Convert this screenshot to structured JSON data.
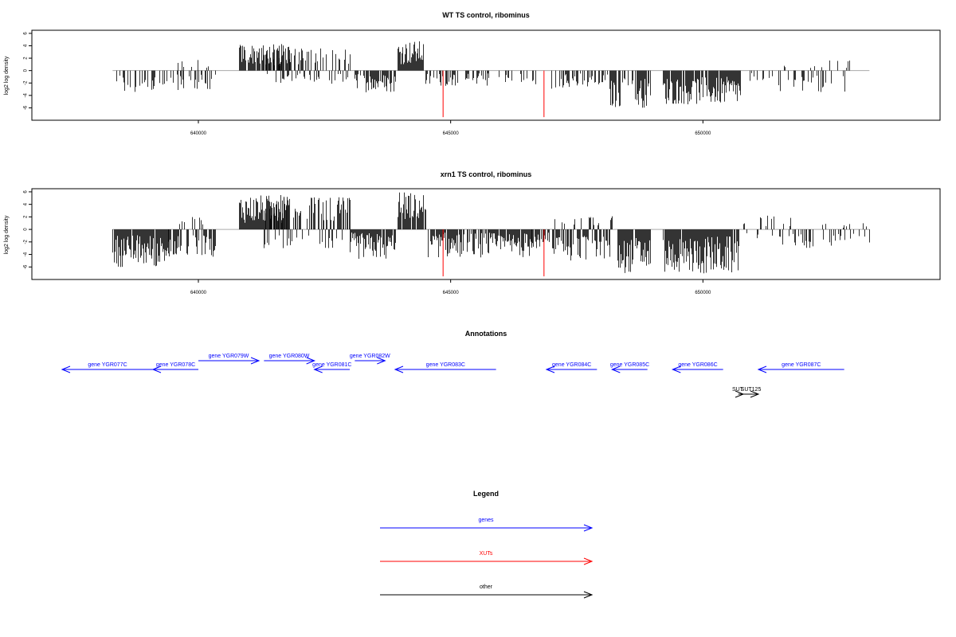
{
  "chart_data": [
    {
      "type": "bar",
      "title": "WT TS control, ribominus",
      "xlabel": "",
      "ylabel": "log2 log density",
      "xlim": [
        636700,
        654700
      ],
      "ylim": [
        -8,
        6.5
      ],
      "xticks": [
        640000,
        645000,
        650000
      ],
      "xtick_labels": [
        "640000",
        "645000",
        "650000"
      ],
      "yticks": [
        -6,
        -4,
        -2,
        0,
        2,
        4,
        6
      ],
      "ytick_labels": [
        "-6",
        "-4",
        "-2",
        "0",
        "2",
        "4",
        "6"
      ],
      "baseline": {
        "from": 638300,
        "to": 653300,
        "y": 0
      },
      "bar_groups": [
        {
          "from": 638350,
          "to": 639700,
          "min": -4.0,
          "max": -0.4,
          "density": 0.35
        },
        {
          "from": 639500,
          "to": 640350,
          "min": -3.0,
          "max": 2.0,
          "density": 0.5
        },
        {
          "from": 640800,
          "to": 641800,
          "min": 1.0,
          "max": 4.3,
          "density": 0.8
        },
        {
          "from": 641300,
          "to": 643000,
          "min": -2.2,
          "max": 3.6,
          "density": 0.65
        },
        {
          "from": 643100,
          "to": 643900,
          "min": -3.5,
          "max": -0.5,
          "density": 0.7
        },
        {
          "from": 643950,
          "to": 644450,
          "min": 1.0,
          "max": 4.8,
          "density": 0.9
        },
        {
          "from": 644500,
          "to": 645800,
          "min": -2.5,
          "max": -0.4,
          "density": 0.45
        },
        {
          "from": 645900,
          "to": 646700,
          "min": -2.2,
          "max": -0.4,
          "density": 0.4
        },
        {
          "from": 647000,
          "to": 648100,
          "min": -3.0,
          "max": -0.4,
          "density": 0.5
        },
        {
          "from": 648150,
          "to": 648350,
          "min": -6.0,
          "max": -1.5,
          "density": 0.9
        },
        {
          "from": 648400,
          "to": 648600,
          "min": -3.0,
          "max": -0.4,
          "density": 0.4
        },
        {
          "from": 648650,
          "to": 648950,
          "min": -6.0,
          "max": -1.2,
          "density": 0.9
        },
        {
          "from": 649200,
          "to": 650750,
          "min": -5.5,
          "max": -1.0,
          "density": 0.9
        },
        {
          "from": 650800,
          "to": 651400,
          "min": -2.0,
          "max": -0.4,
          "density": 0.25
        },
        {
          "from": 651300,
          "to": 652900,
          "min": -3.6,
          "max": 1.8,
          "density": 0.3
        }
      ],
      "highlight_lines": [
        {
          "x": 644850,
          "y": -7.5,
          "color": "#ff0000"
        },
        {
          "x": 646850,
          "y": -7.5,
          "color": "#ff0000"
        }
      ]
    },
    {
      "type": "bar",
      "title": "xrn1 TS control, ribominus",
      "xlabel": "",
      "ylabel": "log2 log density",
      "xlim": [
        636700,
        654700
      ],
      "ylim": [
        -8,
        6.5
      ],
      "xticks": [
        640000,
        645000,
        650000
      ],
      "xtick_labels": [
        "640000",
        "645000",
        "650000"
      ],
      "yticks": [
        -6,
        -4,
        -2,
        0,
        2,
        4,
        6
      ],
      "ytick_labels": [
        "-6",
        "-4",
        "-2",
        "0",
        "2",
        "4",
        "6"
      ],
      "baseline": {
        "from": 638300,
        "to": 653300,
        "y": 0
      },
      "bar_groups": [
        {
          "from": 638300,
          "to": 639400,
          "min": -6.0,
          "max": -0.8,
          "density": 0.95
        },
        {
          "from": 639400,
          "to": 640350,
          "min": -4.5,
          "max": 2.2,
          "density": 0.7
        },
        {
          "from": 640800,
          "to": 641800,
          "min": 1.0,
          "max": 5.5,
          "density": 0.95
        },
        {
          "from": 641300,
          "to": 643000,
          "min": -3.0,
          "max": 5.2,
          "density": 0.75
        },
        {
          "from": 643000,
          "to": 643900,
          "min": -4.8,
          "max": -0.5,
          "density": 0.9
        },
        {
          "from": 643950,
          "to": 644500,
          "min": 1.5,
          "max": 6.0,
          "density": 0.95
        },
        {
          "from": 644550,
          "to": 646600,
          "min": -4.5,
          "max": -0.5,
          "density": 0.85
        },
        {
          "from": 646600,
          "to": 647000,
          "min": -3.0,
          "max": -0.5,
          "density": 0.7
        },
        {
          "from": 647000,
          "to": 648200,
          "min": -5.2,
          "max": 2.2,
          "density": 0.85
        },
        {
          "from": 648300,
          "to": 648600,
          "min": -7.0,
          "max": -1.5,
          "density": 0.95
        },
        {
          "from": 648650,
          "to": 648950,
          "min": -6.5,
          "max": -1.2,
          "density": 0.95
        },
        {
          "from": 649200,
          "to": 650700,
          "min": -7.2,
          "max": -1.0,
          "density": 0.97
        },
        {
          "from": 650800,
          "to": 651800,
          "min": -2.5,
          "max": 2.2,
          "density": 0.4
        },
        {
          "from": 651800,
          "to": 653300,
          "min": -3.0,
          "max": 1.0,
          "density": 0.35
        }
      ],
      "highlight_lines": [
        {
          "x": 644850,
          "y": -7.5,
          "color": "#ff0000"
        },
        {
          "x": 646850,
          "y": -7.5,
          "color": "#ff0000"
        }
      ]
    }
  ],
  "annotations": {
    "title": "Annotations",
    "xlim": [
      636700,
      654700
    ],
    "genes": [
      {
        "label": "gene YGR077C",
        "from": 637300,
        "to": 639100,
        "dir": "left",
        "row": 1,
        "color": "#0000ff"
      },
      {
        "label": "gene YGR078C",
        "from": 639100,
        "to": 640000,
        "dir": "left",
        "row": 1,
        "color": "#0000ff"
      },
      {
        "label": "gene YGR079W",
        "from": 640000,
        "to": 641200,
        "dir": "right",
        "row": 0,
        "color": "#0000ff"
      },
      {
        "label": "gene YGR080W",
        "from": 641300,
        "to": 642300,
        "dir": "right",
        "row": 0,
        "color": "#0000ff"
      },
      {
        "label": "gene YGR081C",
        "from": 642300,
        "to": 643000,
        "dir": "left",
        "row": 1,
        "color": "#0000ff"
      },
      {
        "label": "gene YGR082W",
        "from": 643100,
        "to": 643700,
        "dir": "right",
        "row": 0,
        "color": "#0000ff"
      },
      {
        "label": "gene YGR083C",
        "from": 643900,
        "to": 645900,
        "dir": "left",
        "row": 1,
        "color": "#0000ff"
      },
      {
        "label": "gene YGR084C",
        "from": 646900,
        "to": 647900,
        "dir": "left",
        "row": 1,
        "color": "#0000ff"
      },
      {
        "label": "gene YGR085C",
        "from": 648200,
        "to": 648900,
        "dir": "left",
        "row": 1,
        "color": "#0000ff"
      },
      {
        "label": "gene YGR086C",
        "from": 649400,
        "to": 650400,
        "dir": "left",
        "row": 1,
        "color": "#0000ff"
      },
      {
        "label": "gene YGR087C",
        "from": 651100,
        "to": 652800,
        "dir": "left",
        "row": 1,
        "color": "#0000ff"
      }
    ],
    "other": [
      {
        "label": "SUT",
        "from": 650700,
        "to": 650800,
        "dir": "right",
        "row": 2,
        "color": "#000000",
        "anchor": "end"
      },
      {
        "label": "SUT125",
        "from": 650800,
        "to": 651100,
        "dir": "right",
        "row": 2,
        "color": "#000000",
        "anchor": "middle"
      }
    ]
  },
  "legend": {
    "title": "Legend",
    "items": [
      {
        "label": "genes",
        "color": "#0000ff"
      },
      {
        "label": "XUTs",
        "color": "#ff0000"
      },
      {
        "label": "other",
        "color": "#000000"
      }
    ]
  }
}
